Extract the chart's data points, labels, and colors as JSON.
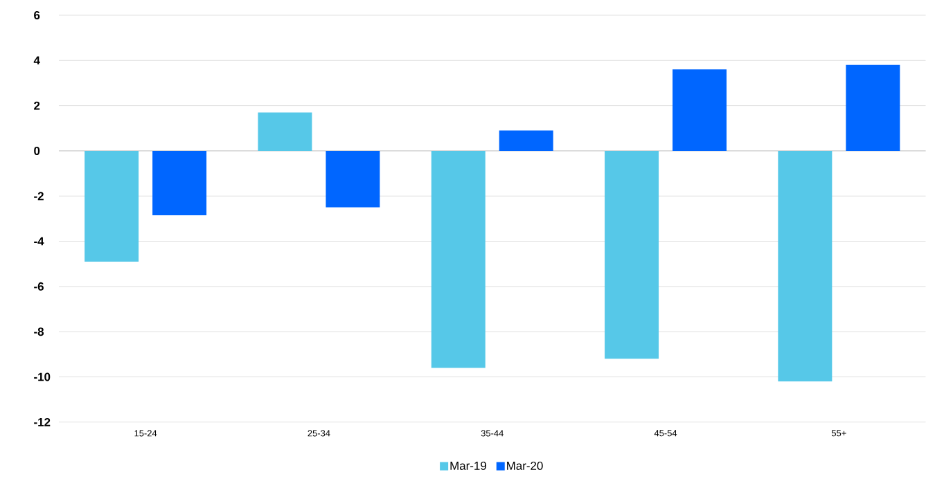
{
  "chart_data": {
    "type": "bar",
    "categories": [
      "15-24",
      "25-34",
      "35-44",
      "45-54",
      "55+"
    ],
    "series": [
      {
        "name": "Mar-19",
        "color": "#56c8e8",
        "values": [
          -4.9,
          1.7,
          -9.6,
          -9.2,
          -10.2
        ]
      },
      {
        "name": "Mar-20",
        "color": "#0066ff",
        "values": [
          -2.85,
          -2.5,
          0.9,
          3.6,
          3.8
        ]
      }
    ],
    "ylim": [
      -12,
      6
    ],
    "yticks": [
      -12,
      -10,
      -8,
      -6,
      -4,
      -2,
      0,
      2,
      4,
      6
    ],
    "grid": "y",
    "legend": "bottom"
  }
}
